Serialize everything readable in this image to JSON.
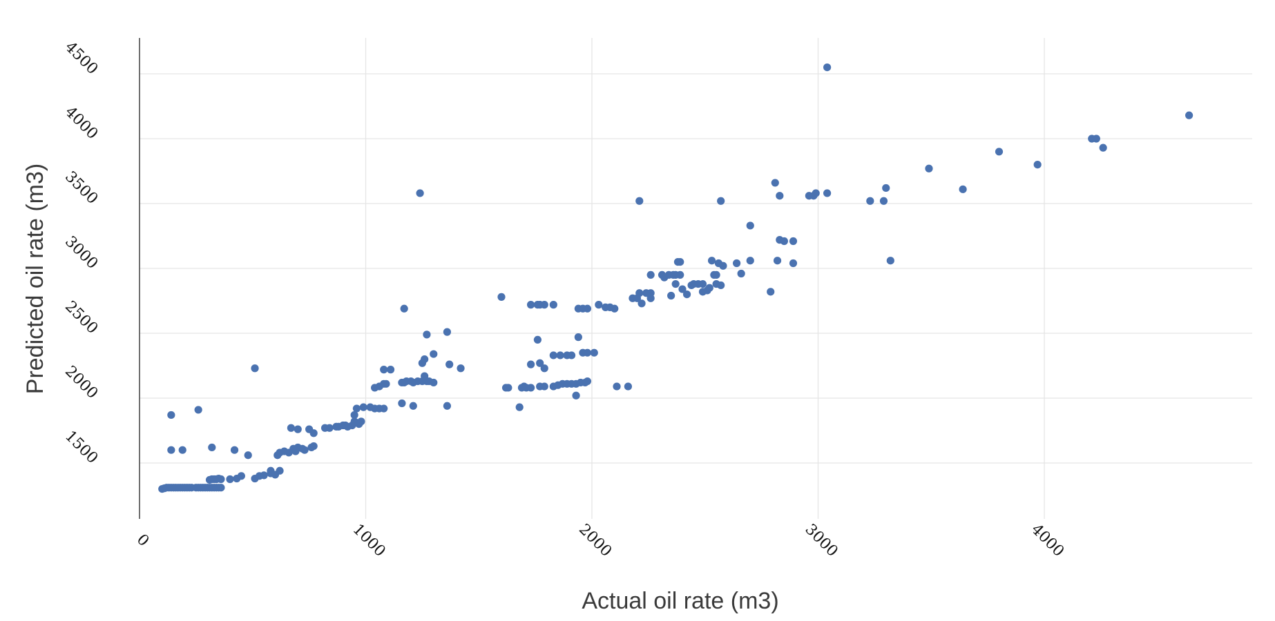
{
  "chart_data": {
    "type": "scatter",
    "title": "",
    "xlabel": "Actual oil rate (m3)",
    "ylabel": "Predicted oil rate (m3)",
    "xlim": [
      0,
      4800
    ],
    "ylim": [
      1300,
      4650
    ],
    "xticks": [
      0,
      1000,
      2000,
      3000,
      4000
    ],
    "yticks": [
      1500,
      2000,
      2500,
      3000,
      3500,
      4000,
      4500
    ],
    "grid": true,
    "legend": "none",
    "marker_color": "#4a72b0",
    "points": [
      [
        100,
        1300
      ],
      [
        110,
        1305
      ],
      [
        120,
        1310
      ],
      [
        130,
        1310
      ],
      [
        140,
        1310
      ],
      [
        150,
        1310
      ],
      [
        160,
        1310
      ],
      [
        170,
        1310
      ],
      [
        180,
        1310
      ],
      [
        190,
        1310
      ],
      [
        200,
        1310
      ],
      [
        210,
        1310
      ],
      [
        220,
        1310
      ],
      [
        230,
        1310
      ],
      [
        250,
        1310
      ],
      [
        260,
        1310
      ],
      [
        270,
        1310
      ],
      [
        280,
        1310
      ],
      [
        290,
        1310
      ],
      [
        300,
        1310
      ],
      [
        310,
        1310
      ],
      [
        320,
        1310
      ],
      [
        330,
        1310
      ],
      [
        340,
        1310
      ],
      [
        350,
        1310
      ],
      [
        360,
        1310
      ],
      [
        310,
        1370
      ],
      [
        320,
        1375
      ],
      [
        330,
        1375
      ],
      [
        340,
        1375
      ],
      [
        350,
        1380
      ],
      [
        360,
        1375
      ],
      [
        400,
        1375
      ],
      [
        430,
        1380
      ],
      [
        450,
        1400
      ],
      [
        510,
        1380
      ],
      [
        530,
        1400
      ],
      [
        550,
        1405
      ],
      [
        580,
        1420
      ],
      [
        600,
        1410
      ],
      [
        580,
        1440
      ],
      [
        620,
        1440
      ],
      [
        610,
        1560
      ],
      [
        620,
        1580
      ],
      [
        640,
        1590
      ],
      [
        660,
        1580
      ],
      [
        680,
        1610
      ],
      [
        690,
        1590
      ],
      [
        700,
        1620
      ],
      [
        720,
        1610
      ],
      [
        730,
        1600
      ],
      [
        760,
        1620
      ],
      [
        770,
        1630
      ],
      [
        670,
        1770
      ],
      [
        700,
        1760
      ],
      [
        750,
        1760
      ],
      [
        770,
        1730
      ],
      [
        820,
        1770
      ],
      [
        840,
        1770
      ],
      [
        870,
        1780
      ],
      [
        880,
        1780
      ],
      [
        900,
        1790
      ],
      [
        910,
        1790
      ],
      [
        920,
        1780
      ],
      [
        940,
        1790
      ],
      [
        950,
        1820
      ],
      [
        960,
        1810
      ],
      [
        970,
        1800
      ],
      [
        980,
        1820
      ],
      [
        960,
        1920
      ],
      [
        990,
        1930
      ],
      [
        1020,
        1930
      ],
      [
        1040,
        1920
      ],
      [
        1060,
        1920
      ],
      [
        1080,
        1920
      ],
      [
        950,
        1870
      ],
      [
        1040,
        2080
      ],
      [
        1060,
        2090
      ],
      [
        1080,
        2110
      ],
      [
        1090,
        2110
      ],
      [
        1080,
        2220
      ],
      [
        1110,
        2220
      ],
      [
        1160,
        2120
      ],
      [
        1170,
        2120
      ],
      [
        1180,
        2130
      ],
      [
        1200,
        2130
      ],
      [
        1210,
        2120
      ],
      [
        1230,
        2130
      ],
      [
        1250,
        2130
      ],
      [
        1260,
        2170
      ],
      [
        1270,
        2130
      ],
      [
        1280,
        2130
      ],
      [
        1300,
        2120
      ],
      [
        1250,
        2270
      ],
      [
        1260,
        2300
      ],
      [
        1300,
        2340
      ],
      [
        1170,
        2690
      ],
      [
        1270,
        2490
      ],
      [
        1360,
        2510
      ],
      [
        1370,
        2260
      ],
      [
        1420,
        2230
      ],
      [
        1160,
        1960
      ],
      [
        1210,
        1940
      ],
      [
        1360,
        1940
      ],
      [
        1240,
        3580
      ],
      [
        510,
        2230
      ],
      [
        140,
        1870
      ],
      [
        140,
        1600
      ],
      [
        190,
        1600
      ],
      [
        260,
        1910
      ],
      [
        320,
        1620
      ],
      [
        420,
        1600
      ],
      [
        480,
        1560
      ],
      [
        1600,
        2780
      ],
      [
        1620,
        2080
      ],
      [
        1630,
        2080
      ],
      [
        1690,
        2080
      ],
      [
        1700,
        2090
      ],
      [
        1710,
        2080
      ],
      [
        1730,
        2080
      ],
      [
        1680,
        1930
      ],
      [
        1730,
        2260
      ],
      [
        1730,
        2720
      ],
      [
        1760,
        2720
      ],
      [
        1770,
        2720
      ],
      [
        1790,
        2720
      ],
      [
        1760,
        2450
      ],
      [
        1770,
        2270
      ],
      [
        1790,
        2230
      ],
      [
        1830,
        2330
      ],
      [
        1860,
        2330
      ],
      [
        1890,
        2330
      ],
      [
        1910,
        2330
      ],
      [
        1830,
        2720
      ],
      [
        1770,
        2090
      ],
      [
        1790,
        2090
      ],
      [
        1830,
        2090
      ],
      [
        1850,
        2100
      ],
      [
        1870,
        2110
      ],
      [
        1890,
        2110
      ],
      [
        1910,
        2110
      ],
      [
        1930,
        2110
      ],
      [
        1950,
        2120
      ],
      [
        1970,
        2120
      ],
      [
        1980,
        2130
      ],
      [
        1940,
        2690
      ],
      [
        1960,
        2690
      ],
      [
        1980,
        2690
      ],
      [
        1940,
        2470
      ],
      [
        1960,
        2350
      ],
      [
        1980,
        2350
      ],
      [
        2010,
        2350
      ],
      [
        1930,
        2020
      ],
      [
        2030,
        2720
      ],
      [
        2060,
        2700
      ],
      [
        2080,
        2700
      ],
      [
        2100,
        2690
      ],
      [
        2110,
        2090
      ],
      [
        2160,
        2090
      ],
      [
        2180,
        2770
      ],
      [
        2200,
        2770
      ],
      [
        2210,
        2810
      ],
      [
        2220,
        2730
      ],
      [
        2240,
        2810
      ],
      [
        2260,
        2810
      ],
      [
        2260,
        2770
      ],
      [
        2260,
        2950
      ],
      [
        2310,
        2950
      ],
      [
        2320,
        2930
      ],
      [
        2340,
        2950
      ],
      [
        2360,
        2950
      ],
      [
        2370,
        2950
      ],
      [
        2390,
        2950
      ],
      [
        2370,
        2880
      ],
      [
        2380,
        3050
      ],
      [
        2390,
        3050
      ],
      [
        2350,
        2790
      ],
      [
        2400,
        2840
      ],
      [
        2420,
        2800
      ],
      [
        2440,
        2870
      ],
      [
        2450,
        2880
      ],
      [
        2470,
        2880
      ],
      [
        2490,
        2880
      ],
      [
        2490,
        2820
      ],
      [
        2510,
        2830
      ],
      [
        2520,
        2850
      ],
      [
        2540,
        2950
      ],
      [
        2550,
        2950
      ],
      [
        2530,
        3060
      ],
      [
        2560,
        3040
      ],
      [
        2580,
        3020
      ],
      [
        2550,
        2880
      ],
      [
        2570,
        2870
      ],
      [
        2640,
        3040
      ],
      [
        2660,
        2960
      ],
      [
        2700,
        3060
      ],
      [
        2700,
        3330
      ],
      [
        2790,
        2820
      ],
      [
        2810,
        3660
      ],
      [
        2830,
        3560
      ],
      [
        2820,
        3060
      ],
      [
        2830,
        3220
      ],
      [
        2850,
        3210
      ],
      [
        2890,
        3210
      ],
      [
        2890,
        3040
      ],
      [
        2210,
        3520
      ],
      [
        2570,
        3520
      ],
      [
        2960,
        3560
      ],
      [
        2980,
        3560
      ],
      [
        2990,
        3580
      ],
      [
        3040,
        3580
      ],
      [
        3040,
        4550
      ],
      [
        3230,
        3520
      ],
      [
        3290,
        3520
      ],
      [
        3300,
        3620
      ],
      [
        3320,
        3060
      ],
      [
        3490,
        3770
      ],
      [
        3640,
        3610
      ],
      [
        3800,
        3900
      ],
      [
        3970,
        3800
      ],
      [
        4210,
        4000
      ],
      [
        4230,
        4000
      ],
      [
        4260,
        3930
      ],
      [
        4640,
        4180
      ]
    ]
  }
}
